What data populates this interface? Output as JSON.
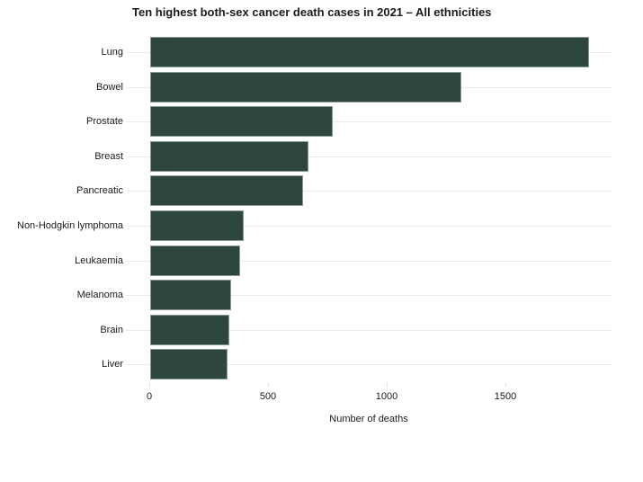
{
  "chart_data": {
    "type": "bar",
    "orientation": "horizontal",
    "title": "Ten highest both-sex cancer death cases in 2021 – All ethnicities",
    "xlabel": "Number of deaths",
    "ylabel": "",
    "categories": [
      "Lung",
      "Bowel",
      "Prostate",
      "Breast",
      "Pancreatic",
      "Non-Hodgkin lymphoma",
      "Leukaemia",
      "Melanoma",
      "Brain",
      "Liver"
    ],
    "values": [
      1848,
      1311,
      768,
      668,
      643,
      393,
      380,
      341,
      332,
      327
    ],
    "xticks": [
      "0",
      "500",
      "1000",
      "1500"
    ],
    "xlim": [
      0,
      1950
    ],
    "grid": true,
    "legend": null,
    "bar_color": "#2d473d"
  }
}
